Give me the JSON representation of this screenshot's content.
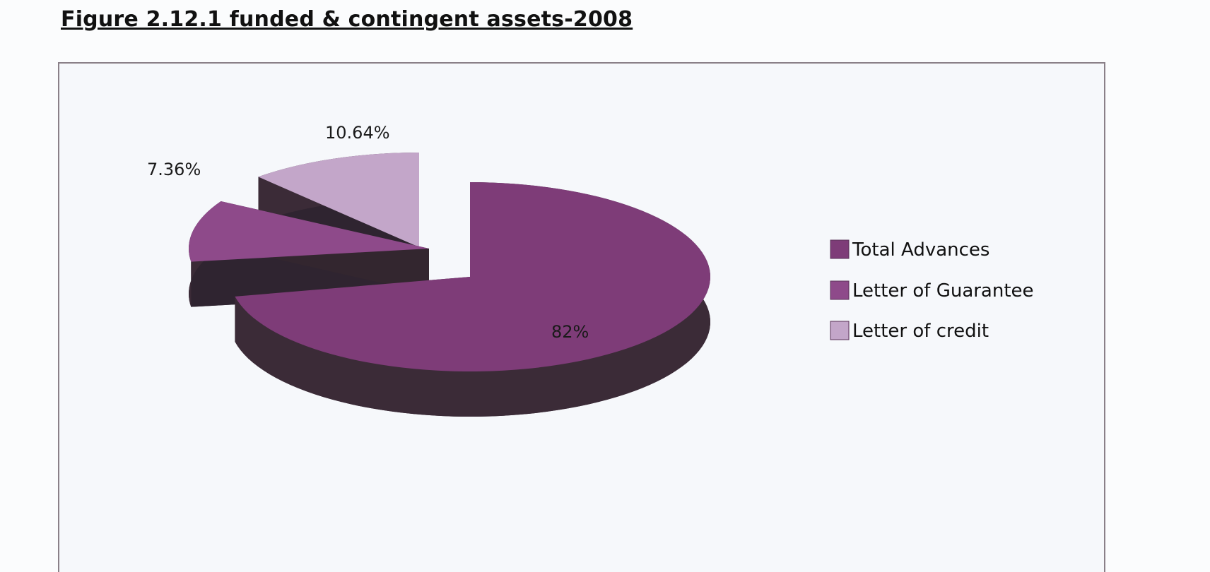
{
  "chart_data": {
    "type": "pie",
    "title": "Figure 2.12.1 funded & contingent assets-2008",
    "labels": [
      "Total Advances",
      "Letter of Guarantee",
      "Letter of credit"
    ],
    "values": [
      82,
      7.36,
      10.64
    ],
    "data_labels": [
      "82%",
      "7.36%",
      "10.64%"
    ],
    "colors": [
      "#7e3c78",
      "#8e4a8a",
      "#c3a6c9"
    ],
    "legend_position": "right",
    "style": "3d-exploded"
  }
}
